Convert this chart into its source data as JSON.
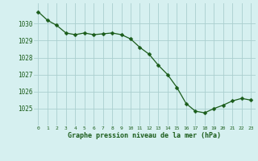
{
  "x": [
    0,
    1,
    2,
    3,
    4,
    5,
    6,
    7,
    8,
    9,
    10,
    11,
    12,
    13,
    14,
    15,
    16,
    17,
    18,
    19,
    20,
    21,
    22,
    23
  ],
  "y": [
    1030.7,
    1030.2,
    1029.9,
    1029.45,
    1029.35,
    1029.45,
    1029.35,
    1029.4,
    1029.45,
    1029.35,
    1029.1,
    1028.6,
    1028.2,
    1027.55,
    1027.0,
    1026.25,
    1025.3,
    1024.85,
    1024.75,
    1025.0,
    1025.2,
    1025.45,
    1025.6,
    1025.5
  ],
  "line_color": "#1a5c1a",
  "marker": "D",
  "marker_size": 2.5,
  "bg_color": "#d6f0f0",
  "grid_color": "#aacfcf",
  "xlabel": "Graphe pression niveau de la mer (hPa)",
  "xlabel_color": "#1a5c1a",
  "tick_color": "#1a5c1a",
  "ylim": [
    1024.0,
    1031.2
  ],
  "yticks": [
    1025,
    1026,
    1027,
    1028,
    1029,
    1030
  ],
  "xlim": [
    -0.5,
    23.5
  ],
  "xticks": [
    0,
    1,
    2,
    3,
    4,
    5,
    6,
    7,
    8,
    9,
    10,
    11,
    12,
    13,
    14,
    15,
    16,
    17,
    18,
    19,
    20,
    21,
    22,
    23
  ],
  "xtick_labels": [
    "0",
    "1",
    "2",
    "3",
    "4",
    "5",
    "6",
    "7",
    "8",
    "9",
    "10",
    "11",
    "12",
    "13",
    "14",
    "15",
    "16",
    "17",
    "18",
    "19",
    "20",
    "21",
    "22",
    "23"
  ]
}
